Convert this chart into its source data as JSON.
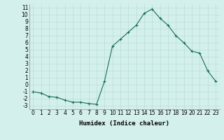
{
  "x": [
    0,
    1,
    2,
    3,
    4,
    5,
    6,
    7,
    8,
    9,
    10,
    11,
    12,
    13,
    14,
    15,
    16,
    17,
    18,
    19,
    20,
    21,
    22,
    23
  ],
  "y": [
    -1,
    -1.2,
    -1.7,
    -1.8,
    -2.2,
    -2.5,
    -2.5,
    -2.7,
    -2.8,
    0.5,
    5.5,
    6.5,
    7.5,
    8.5,
    10.2,
    10.8,
    9.5,
    8.5,
    7.0,
    6.0,
    4.8,
    4.5,
    2.0,
    0.5
  ],
  "line_color": "#1a6b5a",
  "marker": "+",
  "background_color": "#d4f0ec",
  "grid_color": "#b8ddd8",
  "xlabel": "Humidex (Indice chaleur)",
  "xlim": [
    -0.5,
    23.5
  ],
  "ylim": [
    -3.5,
    11.5
  ],
  "xticks": [
    0,
    1,
    2,
    3,
    4,
    5,
    6,
    7,
    8,
    9,
    10,
    11,
    12,
    13,
    14,
    15,
    16,
    17,
    18,
    19,
    20,
    21,
    22,
    23
  ],
  "yticks": [
    -3,
    -2,
    -1,
    0,
    1,
    2,
    3,
    4,
    5,
    6,
    7,
    8,
    9,
    10,
    11
  ],
  "xlabel_fontsize": 6.5,
  "tick_fontsize": 5.5
}
